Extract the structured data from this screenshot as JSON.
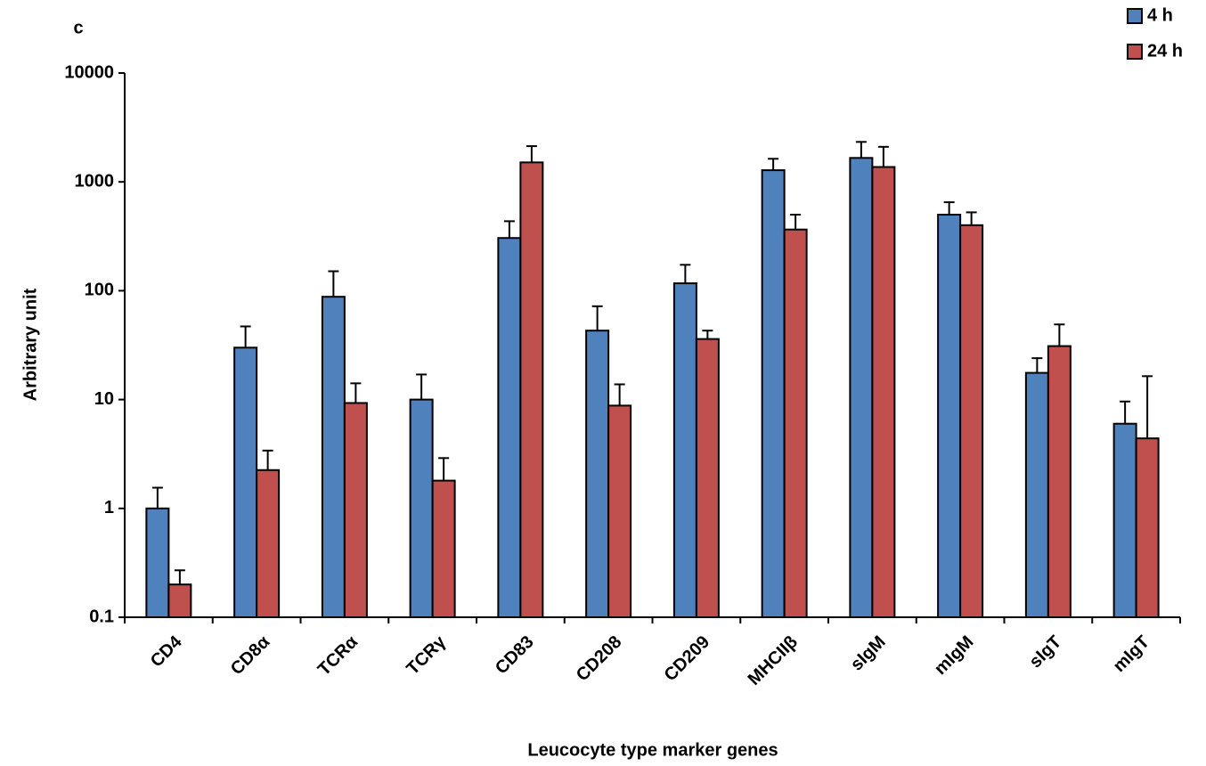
{
  "chart_data": {
    "type": "bar",
    "panel_label": "c",
    "x_label": "Leucocyte type marker genes",
    "y_label": "Arbitrary unit",
    "categories": [
      "CD4",
      "CD8α",
      "TCRα",
      "TCRγ",
      "CD83",
      "CD208",
      "CD209",
      "MHCIIβ",
      "sIgM",
      "mIgM",
      "sIgT",
      "mIgT"
    ],
    "series": [
      {
        "name": "4 h",
        "color": "#4f81bd",
        "values": [
          1.0,
          30,
          88,
          10,
          305,
          43,
          117,
          1280,
          1660,
          500,
          17.6,
          6
        ],
        "errors": [
          0.55,
          17,
          63,
          7,
          130,
          29,
          56,
          350,
          670,
          150,
          6.4,
          3.6
        ]
      },
      {
        "name": "24 h",
        "color": "#c0504d",
        "values": [
          0.2,
          2.25,
          9.3,
          1.8,
          1510,
          8.8,
          36,
          365,
          1370,
          400,
          31,
          4.4
        ],
        "errors": [
          0.07,
          1.15,
          4.8,
          1.1,
          620,
          5,
          7,
          135,
          730,
          125,
          18,
          12
        ]
      }
    ],
    "log_scale": true,
    "ylim": [
      0.1,
      10000
    ],
    "yticks": [
      0.1,
      1,
      10,
      100,
      1000,
      10000
    ],
    "legend": "top-right"
  }
}
